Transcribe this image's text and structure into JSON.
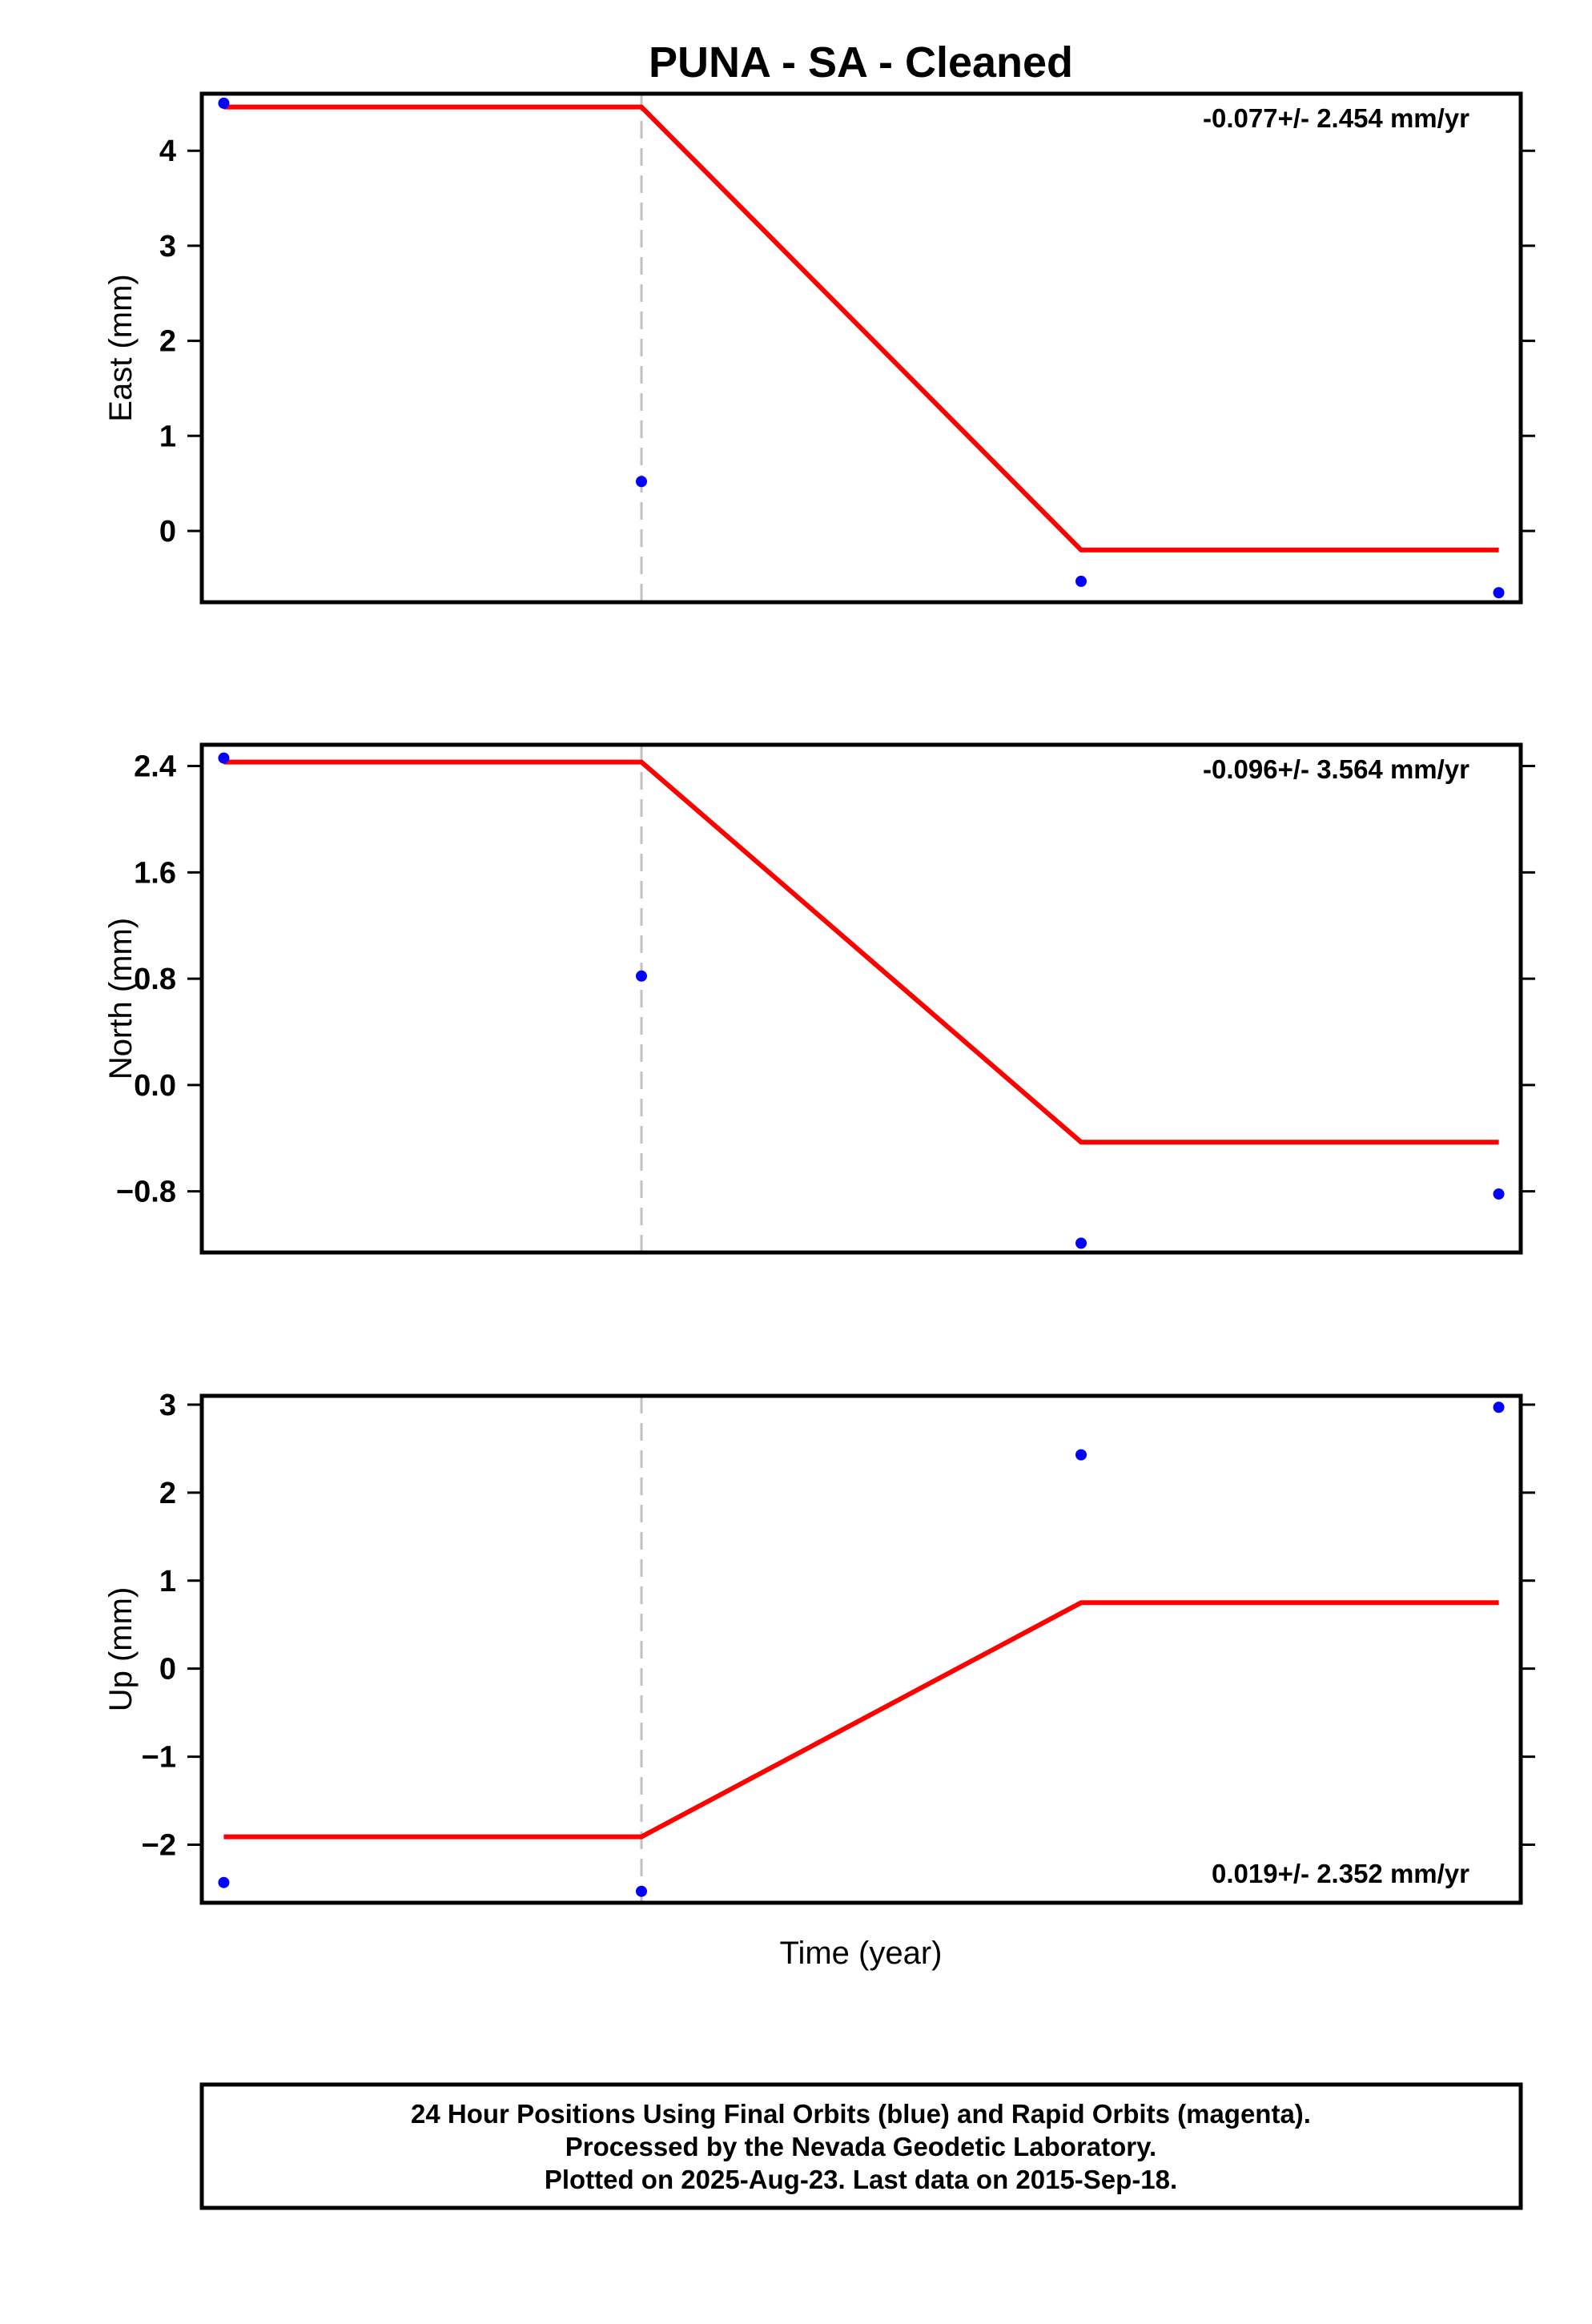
{
  "chart_data": {
    "type": "scatter",
    "title": "PUNA  - SA - Cleaned",
    "xlabel": "Time (year)",
    "colors": {
      "data": "#0000ff",
      "fit": "#ff0000",
      "offset": "#c0c0c0",
      "frame": "#000000"
    },
    "panels": [
      {
        "ylabel": "East (mm)",
        "rate": "-0.077+/- 2.454 mm/yr",
        "rate_position": "top-right",
        "ylim": [
          -0.75,
          4.6
        ],
        "yticks": [
          4,
          3,
          2,
          1,
          0
        ],
        "ytick_labels": [
          "4",
          "3",
          "2",
          "1",
          "0"
        ],
        "points": [
          {
            "x": 0.05,
            "y": 4.5
          },
          {
            "x": 1.0,
            "y": 0.52
          },
          {
            "x": 2.0,
            "y": -0.53
          },
          {
            "x": 2.95,
            "y": -0.65
          }
        ],
        "fit": [
          {
            "x": 0.05,
            "y": 4.46
          },
          {
            "x": 1.0,
            "y": 4.46
          },
          {
            "x": 2.0,
            "y": -0.2
          },
          {
            "x": 2.95,
            "y": -0.2
          }
        ]
      },
      {
        "ylabel": "North (mm)",
        "rate": "-0.096+/- 3.564 mm/yr",
        "rate_position": "top-right",
        "ylim": [
          -1.26,
          2.56
        ],
        "yticks": [
          2.4,
          1.6,
          0.8,
          0.0,
          -0.8
        ],
        "ytick_labels": [
          "2.4",
          "1.6",
          "0.8",
          "0.0",
          "−0.8"
        ],
        "points": [
          {
            "x": 0.05,
            "y": 2.46
          },
          {
            "x": 1.0,
            "y": 0.82
          },
          {
            "x": 2.0,
            "y": -1.19
          },
          {
            "x": 2.95,
            "y": -0.82
          }
        ],
        "fit": [
          {
            "x": 0.05,
            "y": 2.43
          },
          {
            "x": 1.0,
            "y": 2.43
          },
          {
            "x": 2.0,
            "y": -0.43
          },
          {
            "x": 2.95,
            "y": -0.43
          }
        ]
      },
      {
        "ylabel": "Up (mm)",
        "rate": "0.019+/- 2.352 mm/yr",
        "rate_position": "bottom-right",
        "ylim": [
          -2.66,
          3.1
        ],
        "yticks": [
          3,
          2,
          1,
          0,
          -1,
          -2
        ],
        "ytick_labels": [
          "3",
          "2",
          "1",
          "0",
          "−1",
          "−2"
        ],
        "points": [
          {
            "x": 0.05,
            "y": -2.43
          },
          {
            "x": 1.0,
            "y": -2.53
          },
          {
            "x": 2.0,
            "y": 2.43
          },
          {
            "x": 2.95,
            "y": 2.97
          }
        ],
        "fit": [
          {
            "x": 0.05,
            "y": -1.91
          },
          {
            "x": 1.0,
            "y": -1.91
          },
          {
            "x": 2.0,
            "y": 0.75
          },
          {
            "x": 2.95,
            "y": 0.75
          }
        ]
      }
    ],
    "offset_marker_x": 1.0,
    "xlim": [
      0,
      3.0
    ]
  },
  "footer": {
    "line1": "24 Hour Positions Using Final Orbits (blue) and Rapid Orbits (magenta).",
    "line2": "Processed by the Nevada Geodetic Laboratory.",
    "line3": "Plotted on 2025-Aug-23. Last data on 2015-Sep-18."
  }
}
